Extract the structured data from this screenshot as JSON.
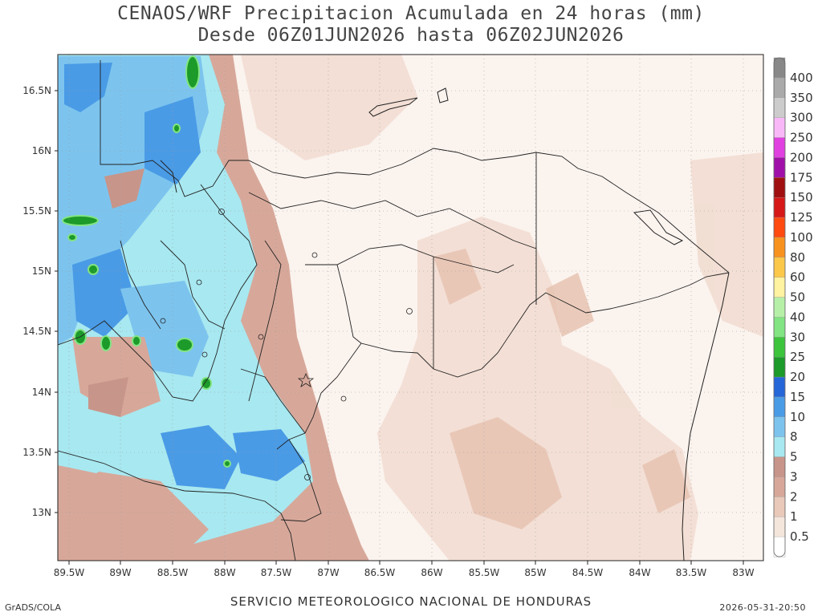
{
  "title": {
    "line1": "CENAOS/WRF Precipitacion Acumulada en 24 horas (mm)",
    "line2": "Desde 06Z01JUN2026 hasta 06Z02JUN2026"
  },
  "axes": {
    "lat_labels": [
      "16.5N",
      "16N",
      "15.5N",
      "15N",
      "14.5N",
      "14N",
      "13.5N",
      "13N"
    ],
    "lon_labels": [
      "89.5W",
      "89W",
      "88.5W",
      "88W",
      "87.5W",
      "87W",
      "86.5W",
      "86W",
      "85.5W",
      "85W",
      "84.5W",
      "84W",
      "83.5W",
      "83W"
    ]
  },
  "colorbar": {
    "levels": [
      "0.5",
      "1",
      "2",
      "3",
      "5",
      "8",
      "10",
      "15",
      "20",
      "25",
      "30",
      "40",
      "50",
      "60",
      "80",
      "100",
      "125",
      "150",
      "175",
      "200",
      "250",
      "300",
      "350",
      "400"
    ],
    "colors": [
      "#ffffff",
      "#f5e6dc",
      "#e9c9b9",
      "#d7a89a",
      "#c8958a",
      "#a8e8f0",
      "#7cc4ee",
      "#4a9be6",
      "#2566d8",
      "#1c9a2a",
      "#3cc43c",
      "#82e482",
      "#b6f0a8",
      "#fff2a0",
      "#fbc84a",
      "#f8921e",
      "#ff4a10",
      "#d61818",
      "#a01010",
      "#a010a8",
      "#e040e0",
      "#f8b8f8",
      "#cccccc",
      "#aaaaaa",
      "#888888"
    ]
  },
  "legend_colors": {
    "land_light": "#f5e6dc",
    "land_mid": "#e9c9b9",
    "land_dark": "#d7a89a",
    "rain_cyan": "#a8e8f0",
    "rain_blue": "#4a9be6",
    "rain_green": "#1c9a2a"
  },
  "footer": {
    "left": "GrADS/COLA",
    "center": "SERVICIO METEOROLOGICO NACIONAL DE HONDURAS",
    "right": "2026-05-31-20:50"
  }
}
